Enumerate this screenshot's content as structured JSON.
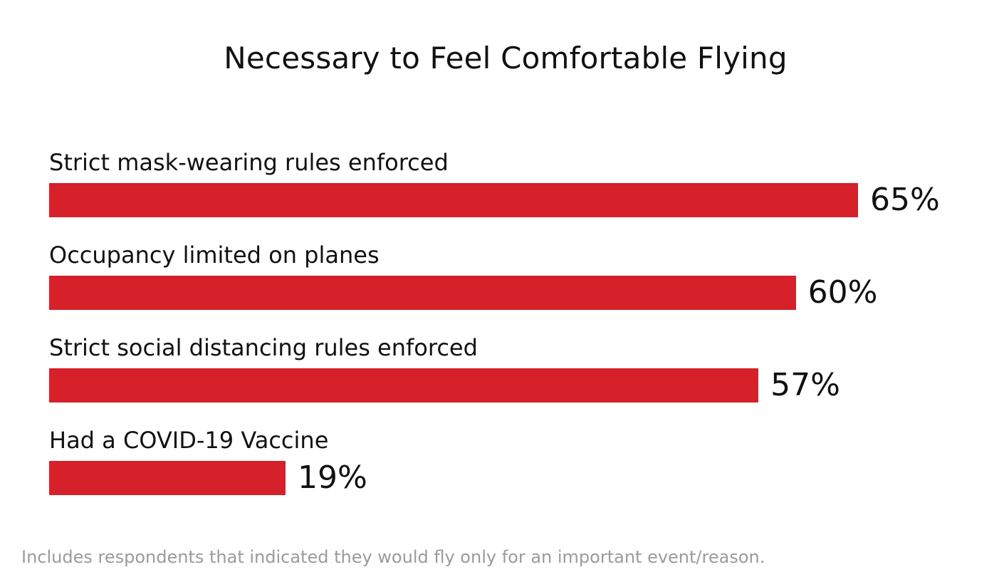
{
  "chart_data": {
    "type": "bar",
    "orientation": "horizontal",
    "title": "Necessary to Feel Comfortable Flying",
    "categories": [
      "Strict mask-wearing rules enforced",
      "Occupancy limited on planes",
      "Strict social distancing rules enforced",
      "Had a COVID-19 Vaccine"
    ],
    "values": [
      65,
      60,
      57,
      19
    ],
    "value_labels": [
      "65%",
      "60%",
      "57%",
      "19%"
    ],
    "unit": "%",
    "xlim": [
      0,
      100
    ],
    "grid": false,
    "legend": "none",
    "bar_color": "#d6202a"
  },
  "footnote": "Includes respondents that indicated they would fly only for an important event/reason."
}
